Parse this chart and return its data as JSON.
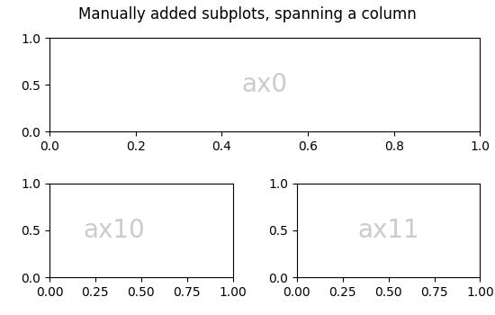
{
  "title": "Manually added subplots, spanning a column",
  "title_fontsize": 12,
  "label_color": "#cccccc",
  "label_fontsize": 20,
  "ax0_label": "ax0",
  "ax10_label": "ax10",
  "ax11_label": "ax11",
  "fig_width": 5.5,
  "fig_height": 3.5,
  "fig_dpi": 100
}
